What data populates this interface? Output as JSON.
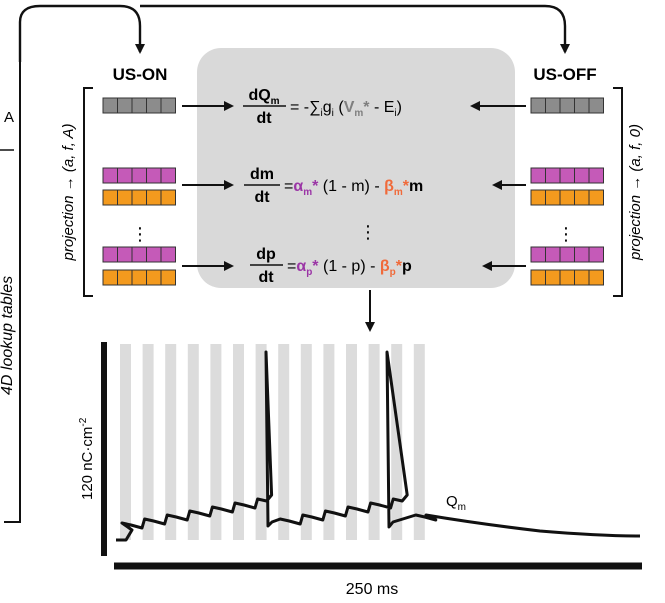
{
  "labels": {
    "lookup_tables": "4D lookup tables",
    "lookup_tables_partial": "A",
    "us_on": "US-ON",
    "us_off": "US-OFF",
    "projection_on": "projection → (a, f, A)",
    "projection_off": "projection → (a, f, 0)",
    "vertical_ellipsis": "⋮"
  },
  "equations": {
    "charge": {
      "num_main": "dQ",
      "num_sub": "m",
      "den": "dt",
      "rhs_sign": "= -∑",
      "rhs_sub_i": "i",
      "rhs_g": "g",
      "rhs_g_sub": "i",
      "rhs_paren_open": "(",
      "rhs_V": "V",
      "rhs_V_sub": "m",
      "rhs_V_star": "*",
      "rhs_minus_E": " - E",
      "rhs_E_sub": "i",
      "rhs_paren_close": ")"
    },
    "gate_m": {
      "num": "dm",
      "den": "dt",
      "eq": "=",
      "alpha": "α",
      "alpha_sub": "m",
      "star": "*",
      "middle": "(1 - m) -",
      "beta": "β",
      "beta_sub": "m",
      "tail": "m"
    },
    "gate_p": {
      "num": "dp",
      "den": "dt",
      "eq": "=",
      "alpha": "α",
      "alpha_sub": "p",
      "star": "*",
      "middle": "(1 - p) -",
      "beta": "β",
      "beta_sub": "p",
      "tail": "p"
    }
  },
  "trace": {
    "label_main": "Q",
    "label_sub": "m",
    "scale_y": "120 nC·cm",
    "scale_y_exp": "-2",
    "scale_x": "250 ms"
  },
  "colors": {
    "grey_cells": "#8c8c8c",
    "magenta_cells": "#c55ab8",
    "orange_cells": "#f39a1e",
    "box_fill": "#d9d9d9",
    "alpha_color": "#9b35a6",
    "beta_color": "#f06a3a",
    "V_color": "#7f7f7f",
    "stripe": "#dcdcdc"
  }
}
